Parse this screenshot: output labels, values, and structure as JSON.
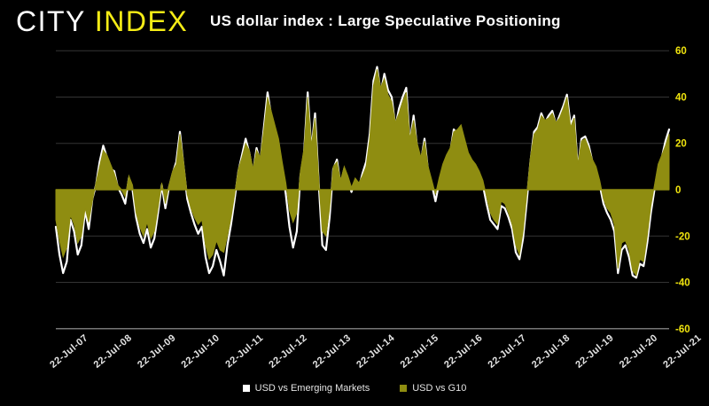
{
  "header": {
    "logo_city": "CITY",
    "logo_index": "INDEX",
    "title": "US dollar index : Large Speculative Positioning"
  },
  "colors": {
    "background": "#000000",
    "logo_city_text": "#FFFFFF",
    "logo_index_text": "#F5EC16",
    "title_text": "#FFFFFF",
    "g10_fill": "#8F8D11",
    "em_line": "#FFFFFF",
    "y_tick_text": "#F0E40E",
    "x_tick_text": "#E3E3E3",
    "legend_text": "#E4E4E4",
    "gridline": "#343434",
    "axis_line": "#9C9C9C"
  },
  "chart_data": {
    "type": "area",
    "title": "US dollar index : Large Speculative Positioning",
    "xlabel": "",
    "ylabel": "",
    "ylim": [
      -60,
      60
    ],
    "y_ticks": [
      60,
      40,
      20,
      0,
      -20,
      -40,
      -60
    ],
    "grid": "horizontal",
    "legend_position": "bottom",
    "x_tick_labels": [
      "22-Jul-07",
      "22-Jul-08",
      "22-Jul-09",
      "22-Jul-10",
      "22-Jul-11",
      "22-Jul-12",
      "22-Jul-13",
      "22-Jul-14",
      "22-Jul-15",
      "22-Jul-16",
      "22-Jul-17",
      "22-Jul-18",
      "22-Jul-19",
      "22-Jul-20",
      "22-Jul-21"
    ],
    "points_per_x_tick_interval": 12,
    "series": [
      {
        "name": "USD vs Emerging Markets",
        "type": "line",
        "color": "#FFFFFF",
        "values": [
          -16,
          -28,
          -36,
          -31,
          -13,
          -18,
          -28,
          -24,
          -9,
          -17,
          -4,
          2,
          12,
          19,
          14,
          9,
          8,
          1,
          -2,
          -6,
          5,
          0,
          -12,
          -19,
          -23,
          -17,
          -25,
          -21,
          -10,
          2,
          -8,
          1,
          7,
          12,
          25,
          10,
          -4,
          -10,
          -15,
          -19,
          -16,
          -29,
          -36,
          -33,
          -26,
          -31,
          -37,
          -24,
          -15,
          -4,
          8,
          15,
          22,
          16,
          7,
          18,
          12,
          27,
          42,
          32,
          26,
          20,
          9,
          -2,
          -16,
          -25,
          -18,
          6,
          16,
          42,
          17,
          33,
          3,
          -24,
          -26,
          -12,
          9,
          13,
          2,
          9,
          4,
          -1,
          4,
          1,
          7,
          12,
          24,
          47,
          53,
          42,
          50,
          43,
          40,
          27,
          35,
          40,
          44,
          20,
          32,
          18,
          12,
          22,
          8,
          2,
          -5,
          3,
          9,
          13,
          16,
          26,
          24,
          26,
          20,
          14,
          11,
          9,
          6,
          2,
          -6,
          -13,
          -15,
          -17,
          -7,
          -8,
          -12,
          -17,
          -27,
          -30,
          -21,
          -5,
          12,
          25,
          27,
          33,
          29,
          32,
          34,
          28,
          32,
          36,
          41,
          28,
          32,
          9,
          22,
          23,
          19,
          12,
          8,
          2,
          -6,
          -10,
          -13,
          -18,
          -36,
          -26,
          -24,
          -29,
          -37,
          -38,
          -32,
          -33,
          -23,
          -10,
          0,
          9,
          14,
          21,
          26
        ]
      },
      {
        "name": "USD vs G10",
        "type": "area",
        "color": "#8F8D11",
        "values": [
          -13,
          -22,
          -29,
          -25,
          -11,
          -15,
          -23,
          -20,
          -8,
          -14,
          -5,
          3,
          10,
          17,
          15,
          11,
          7,
          2,
          0,
          -3,
          6,
          2,
          -10,
          -16,
          -20,
          -14,
          -21,
          -18,
          -8,
          3,
          -6,
          2,
          8,
          11,
          24,
          12,
          -2,
          -8,
          -12,
          -15,
          -13,
          -24,
          -30,
          -28,
          -22,
          -26,
          -27,
          -20,
          -12,
          -2,
          9,
          14,
          20,
          17,
          9,
          17,
          14,
          26,
          40,
          34,
          28,
          22,
          12,
          3,
          -9,
          -14,
          -10,
          8,
          18,
          40,
          19,
          31,
          5,
          -18,
          -20,
          -8,
          10,
          12,
          4,
          10,
          6,
          1,
          5,
          3,
          6,
          10,
          22,
          45,
          52,
          44,
          48,
          41,
          38,
          29,
          33,
          38,
          42,
          22,
          30,
          20,
          14,
          21,
          10,
          4,
          -2,
          5,
          11,
          15,
          18,
          25,
          26,
          28,
          22,
          16,
          13,
          11,
          8,
          4,
          -3,
          -10,
          -13,
          -15,
          -5,
          -6,
          -10,
          -15,
          -24,
          -28,
          -18,
          -2,
          14,
          24,
          26,
          32,
          30,
          31,
          33,
          29,
          31,
          35,
          40,
          27,
          31,
          11,
          21,
          22,
          18,
          13,
          10,
          4,
          -4,
          -8,
          -10,
          -15,
          -34,
          -23,
          -22,
          -26,
          -35,
          -37,
          -30,
          -31,
          -20,
          -7,
          2,
          11,
          15,
          19,
          24
        ]
      }
    ]
  }
}
